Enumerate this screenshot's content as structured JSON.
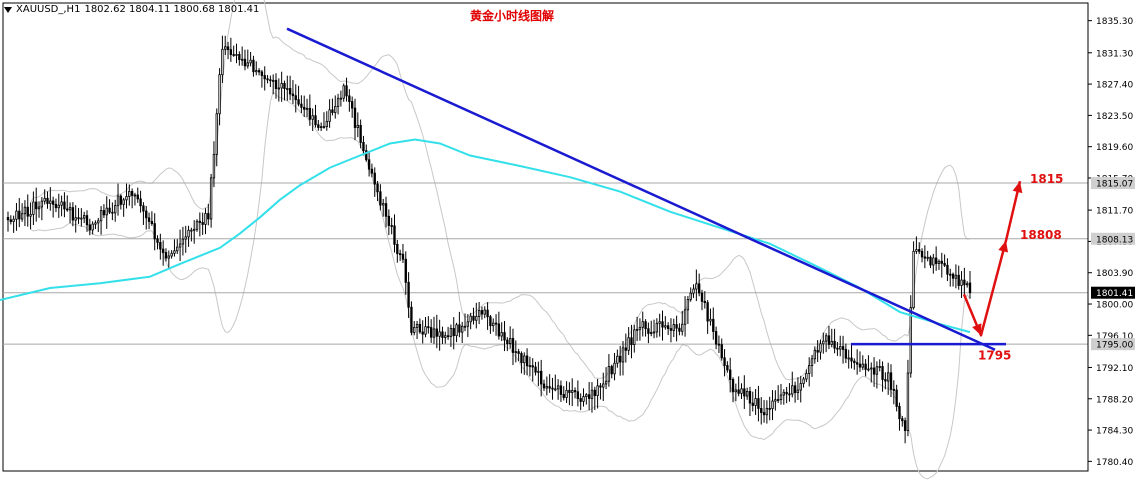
{
  "header": {
    "symbol": "XAUUSD_,H1",
    "ohlc": "1802.62 1804.11 1800.68 1801.41"
  },
  "title": "黄金小时线图解",
  "colors": {
    "candle": "#000000",
    "ma": "#33e0ea",
    "bands": "#c8c8c8",
    "trendline": "#1a1ad0",
    "arrow": "#e01010",
    "annotation_text": "#e01010",
    "hline": "#a8a8a8"
  },
  "chart_data": {
    "type": "candlestick",
    "title": "黄金小时线图解",
    "ylim": [
      1779.2,
      1837.5
    ],
    "y_ticks": [
      "1835.30",
      "1831.30",
      "1827.40",
      "1823.50",
      "1819.60",
      "1815.70",
      "1811.70",
      "1807.80",
      "1803.90",
      "1800.00",
      "1796.10",
      "1792.10",
      "1788.20",
      "1784.30",
      "1780.40"
    ],
    "price_labels": [
      {
        "price": 1815.07,
        "text": "1815.07",
        "highlight": false
      },
      {
        "price": 1808.13,
        "text": "1808.13",
        "highlight": false
      },
      {
        "price": 1801.41,
        "text": "1801.41",
        "highlight": true
      },
      {
        "price": 1795.0,
        "text": "1795.00",
        "highlight": false
      }
    ],
    "horizontal_lines": [
      1815.07,
      1808.13,
      1801.41,
      1795.0
    ],
    "series": [
      {
        "name": "",
        "segments": [
          {
            "n": 15,
            "from": 1810,
            "to": 1813
          },
          {
            "n": 15,
            "from": 1813,
            "to": 1810
          },
          {
            "n": 15,
            "from": 1810,
            "to": 1814
          },
          {
            "n": 12,
            "from": 1814,
            "to": 1806
          },
          {
            "n": 15,
            "from": 1806,
            "to": 1811
          },
          {
            "n": 5,
            "from": 1811,
            "to": 1832
          },
          {
            "n": 25,
            "from": 1832,
            "to": 1826
          },
          {
            "n": 10,
            "from": 1826,
            "to": 1822
          },
          {
            "n": 8,
            "from": 1822,
            "to": 1827
          },
          {
            "n": 14,
            "from": 1827,
            "to": 1812
          },
          {
            "n": 7,
            "from": 1812,
            "to": 1805
          },
          {
            "n": 3,
            "from": 1805,
            "to": 1797
          },
          {
            "n": 13,
            "from": 1797,
            "to": 1796
          },
          {
            "n": 12,
            "from": 1796,
            "to": 1799
          },
          {
            "n": 10,
            "from": 1799,
            "to": 1795
          },
          {
            "n": 12,
            "from": 1795,
            "to": 1790
          },
          {
            "n": 16,
            "from": 1790,
            "to": 1788
          },
          {
            "n": 18,
            "from": 1788,
            "to": 1797
          },
          {
            "n": 14,
            "from": 1797,
            "to": 1797
          },
          {
            "n": 6,
            "from": 1797,
            "to": 1803
          },
          {
            "n": 12,
            "from": 1803,
            "to": 1790
          },
          {
            "n": 12,
            "from": 1790,
            "to": 1787
          },
          {
            "n": 12,
            "from": 1787,
            "to": 1790
          },
          {
            "n": 10,
            "from": 1790,
            "to": 1796
          },
          {
            "n": 10,
            "from": 1796,
            "to": 1793
          },
          {
            "n": 12,
            "from": 1793,
            "to": 1791
          },
          {
            "n": 6,
            "from": 1791,
            "to": 1784
          },
          {
            "n": 3,
            "from": 1784,
            "to": 1807
          },
          {
            "n": 13,
            "from": 1807,
            "to": 1804
          },
          {
            "n": 7,
            "from": 1804,
            "to": 1801.4
          }
        ]
      },
      {
        "name": "",
        "points": [
          [
            0,
            1800.5
          ],
          [
            50,
            1802
          ],
          [
            100,
            1802.6
          ],
          [
            150,
            1803.4
          ],
          [
            180,
            1805
          ],
          [
            220,
            1807
          ],
          [
            240,
            1808.8
          ],
          [
            260,
            1810.8
          ],
          [
            280,
            1813
          ],
          [
            300,
            1814.8
          ],
          [
            330,
            1817
          ],
          [
            360,
            1818.5
          ],
          [
            390,
            1820
          ],
          [
            415,
            1820.5
          ],
          [
            440,
            1820
          ],
          [
            470,
            1818.5
          ],
          [
            520,
            1817.2
          ],
          [
            570,
            1815.8
          ],
          [
            620,
            1814
          ],
          [
            670,
            1811.5
          ],
          [
            720,
            1809.5
          ],
          [
            770,
            1807.5
          ],
          [
            820,
            1804.5
          ],
          [
            860,
            1802
          ],
          [
            900,
            1799
          ],
          [
            940,
            1797.5
          ],
          [
            970,
            1796.5
          ]
        ]
      }
    ],
    "trendlines": [
      {
        "from": [
          287,
          1834.3
        ],
        "to": [
          995,
          1794.3
        ]
      },
      {
        "from": [
          851,
          1795.0
        ],
        "to": [
          1006,
          1795.0
        ]
      }
    ],
    "annotations": [
      {
        "text": "1815",
        "price": 1815.6
      },
      {
        "text": "18808",
        "price": 1808.6
      },
      {
        "text": "1795",
        "price": 1793.6
      }
    ],
    "forecast_path": [
      [
        964,
        1801.2
      ],
      [
        981,
        1796.1
      ],
      [
        1006,
        1807.9
      ],
      [
        1020,
        1815.3
      ]
    ]
  }
}
